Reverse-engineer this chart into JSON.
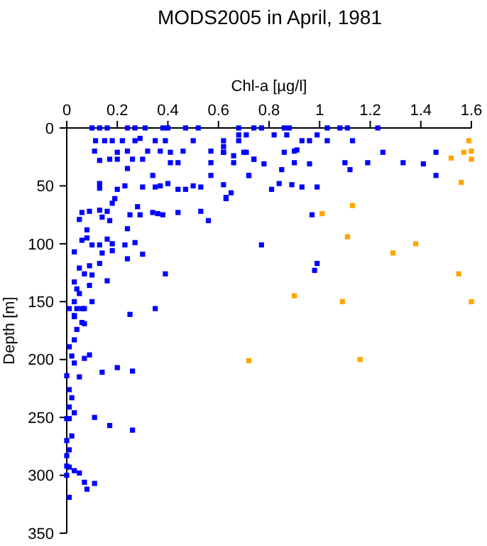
{
  "chart_data": {
    "type": "scatter",
    "title": "MODS2005 in April, 1981",
    "xlabel": "Chl-a [µg/l]",
    "ylabel": "Depth [m]",
    "xlim": [
      0,
      1.6
    ],
    "xticks": [
      0,
      0.2,
      0.4,
      0.6,
      0.8,
      1,
      1.2,
      1.4,
      1.6
    ],
    "ylim": [
      350,
      0
    ],
    "yticks": [
      0,
      50,
      100,
      150,
      200,
      250,
      300,
      350
    ],
    "marker": "square",
    "series": [
      {
        "color": "#0000ff",
        "x": [
          0.1,
          0.13,
          0.16,
          0.24,
          0.27,
          0.31,
          0.38,
          0.4,
          0.47,
          0.52,
          0.68,
          0.74,
          0.77,
          0.86,
          0.88,
          1.03,
          1.08,
          1.11,
          1.23,
          0.114,
          0.15,
          0.18,
          0.22,
          0.27,
          0.29,
          0.35,
          0.39,
          0.5,
          0.62,
          0.68,
          0.11,
          0.2,
          0.24,
          0.32,
          0.37,
          0.41,
          0.46,
          0.57,
          0.62,
          0.71,
          0.13,
          0.17,
          0.2,
          0.26,
          0.3,
          0.41,
          0.44,
          0.57,
          0.66,
          0.74,
          0.24,
          0.34,
          0.57,
          0.72,
          0.13,
          0.13,
          0.2,
          0.23,
          0.3,
          0.35,
          0.37,
          0.4,
          0.44,
          0.47,
          0.5,
          0.53,
          0.62,
          0.63,
          0.65,
          0.19,
          0.18,
          0.13,
          0.16,
          0.09,
          0.06,
          0.28,
          0.25,
          0.29,
          0.34,
          0.36,
          0.38,
          0.44,
          0.53,
          0.56,
          0.05,
          0.14,
          0.17,
          0.08,
          0.06,
          0.08,
          0.1,
          0.13,
          0.16,
          0.18,
          0.24,
          0.23,
          0.27,
          0.03,
          0.14,
          0.18,
          0.3,
          0.24,
          0.05,
          0.09,
          0.13,
          0.07,
          0.1,
          0.03,
          0.16,
          0.39,
          0.04,
          0.05,
          0.1,
          0.03,
          0.01,
          0.04,
          0.06,
          0.03,
          0.06,
          0.35,
          0.25,
          0.68,
          0.71,
          0.82,
          0.87,
          0.93,
          0.96,
          0.99,
          1.03,
          1.13,
          0.62,
          0.62,
          0.66,
          0.7,
          0.74,
          0.78,
          0.86,
          0.9,
          0.91,
          0.9,
          0.96,
          1.1,
          1.19,
          1.25,
          1.33,
          1.41,
          1.46,
          0.72,
          0.85,
          1.12,
          1.46,
          0.81,
          0.84,
          0.89,
          0.93,
          0.99,
          0.63,
          0.97,
          0.77,
          0.99,
          0.98,
          0.09,
          0.07,
          0.03,
          0.07,
          0.04,
          0.03,
          0.01,
          0.09,
          0.02,
          0.07,
          0.03,
          0.2,
          0.26,
          0.14,
          0,
          0.05,
          0.01,
          0.02,
          0.01,
          0.03,
          0.11,
          0.01,
          0,
          0.17,
          0.26,
          0.02,
          0,
          0.01,
          0,
          0,
          0.01,
          0.03,
          0.05,
          0,
          0.07,
          0.11,
          0.08,
          0.01
        ],
        "values": [
          0,
          0,
          0,
          0,
          0,
          0,
          0,
          0,
          0,
          0,
          0,
          0,
          0,
          0,
          0,
          0,
          0,
          0,
          0,
          11,
          11,
          11,
          11,
          11,
          9,
          11,
          11,
          11,
          11,
          11,
          20,
          21,
          20,
          20,
          20,
          21,
          20,
          20,
          21,
          21,
          28,
          27,
          27,
          27,
          27,
          30,
          30,
          30,
          30,
          27,
          35,
          41,
          41,
          41,
          48,
          52,
          53,
          50,
          51,
          51,
          50,
          48,
          53,
          53,
          50,
          51,
          49,
          60,
          56,
          61,
          65,
          71,
          72,
          72,
          73,
          68,
          75,
          75,
          73,
          74,
          75,
          73,
          72,
          80,
          79,
          77,
          80,
          88,
          97,
          95,
          101,
          101,
          96,
          100,
          87,
          101,
          99,
          107,
          108,
          106,
          109,
          113,
          121,
          119,
          117,
          126,
          127,
          133,
          132,
          126,
          139,
          143,
          150,
          150,
          156,
          156,
          156,
          162,
          168,
          156,
          161,
          6,
          6,
          6,
          6,
          11,
          11,
          6,
          11,
          11,
          16,
          21,
          24,
          21,
          27,
          31,
          21,
          20,
          19,
          30,
          31,
          30,
          30,
          21,
          30,
          31,
          21,
          41,
          36,
          36,
          41,
          53,
          48,
          49,
          51,
          51,
          61,
          75,
          101,
          117,
          123,
          136,
          156,
          163,
          169,
          174,
          183,
          189,
          196,
          197,
          199,
          203,
          207,
          210,
          211,
          214,
          215,
          226,
          233,
          241,
          246,
          250,
          251,
          251,
          257,
          261,
          266,
          270,
          278,
          283,
          292,
          293,
          296,
          298,
          300,
          306,
          307,
          312,
          319
        ]
      },
      {
        "color": "#ffa500",
        "x": [
          1.59,
          1.6,
          1.57,
          1.52,
          1.6,
          1.56,
          1.13,
          1.01,
          1.11,
          1.38,
          1.29,
          1.55,
          0.9,
          1.09,
          1.6,
          0.72,
          1.16
        ],
        "values": [
          11,
          20,
          21,
          26,
          27,
          47,
          67,
          74,
          94,
          100,
          108,
          126,
          145,
          150,
          150,
          201,
          200
        ]
      }
    ]
  }
}
